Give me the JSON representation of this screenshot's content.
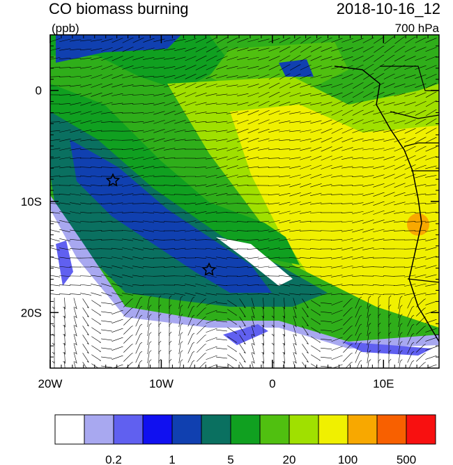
{
  "header": {
    "title": "CO biomass burning",
    "units": "(ppb)",
    "time": "2018-10-16_12",
    "level": "700 hPa"
  },
  "map": {
    "lon_range": [
      -20,
      15
    ],
    "lat_range": [
      -25,
      5
    ],
    "lon_ticks": [
      {
        "value": -20,
        "label": "20W"
      },
      {
        "value": -10,
        "label": "10W"
      },
      {
        "value": 0,
        "label": "0"
      },
      {
        "value": 10,
        "label": "10E"
      }
    ],
    "lat_ticks": [
      {
        "value": 0,
        "label": "0"
      },
      {
        "value": -10,
        "label": "10S"
      },
      {
        "value": -20,
        "label": "20S"
      }
    ]
  },
  "colorbar": {
    "colors": [
      "#ffffff",
      "#a8a8f0",
      "#6060f0",
      "#1010f0",
      "#1040b0",
      "#0a7060",
      "#10a020",
      "#50c010",
      "#a0e000",
      "#f0f000",
      "#f8a800",
      "#f86000",
      "#f81010"
    ],
    "labels": [
      "0.2",
      "1",
      "5",
      "20",
      "100",
      "500"
    ]
  }
}
